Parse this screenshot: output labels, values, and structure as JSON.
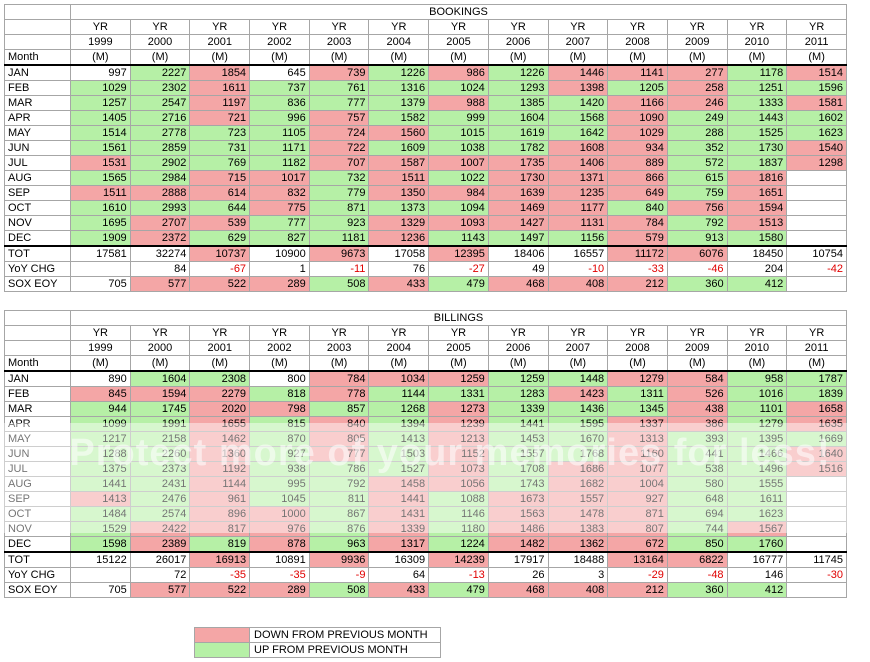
{
  "years": [
    "1999",
    "2000",
    "2001",
    "2002",
    "2003",
    "2004",
    "2005",
    "2006",
    "2007",
    "2008",
    "2009",
    "2010",
    "2011"
  ],
  "yr_label": "YR",
  "unit_label": "(M)",
  "month_col_label": "Month",
  "bookings": {
    "title": "BOOKINGS",
    "rows": [
      {
        "m": "JAN",
        "v": [
          "997",
          "2227",
          "1854",
          "645",
          "739",
          "1226",
          "986",
          "1226",
          "1446",
          "1141",
          "277",
          "1178",
          "1514"
        ],
        "c": [
          "",
          "g",
          "r",
          "",
          "r",
          "g",
          "r",
          "g",
          "r",
          "r",
          "r",
          "g",
          "r"
        ]
      },
      {
        "m": "FEB",
        "v": [
          "1029",
          "2302",
          "1611",
          "737",
          "761",
          "1316",
          "1024",
          "1293",
          "1398",
          "1205",
          "258",
          "1251",
          "1596"
        ],
        "c": [
          "g",
          "g",
          "r",
          "g",
          "g",
          "g",
          "g",
          "g",
          "r",
          "g",
          "r",
          "g",
          "g"
        ]
      },
      {
        "m": "MAR",
        "v": [
          "1257",
          "2547",
          "1197",
          "836",
          "777",
          "1379",
          "988",
          "1385",
          "1420",
          "1166",
          "246",
          "1333",
          "1581"
        ],
        "c": [
          "g",
          "g",
          "r",
          "g",
          "g",
          "g",
          "r",
          "g",
          "g",
          "r",
          "r",
          "g",
          "r"
        ]
      },
      {
        "m": "APR",
        "v": [
          "1405",
          "2716",
          "721",
          "996",
          "757",
          "1582",
          "999",
          "1604",
          "1568",
          "1090",
          "249",
          "1443",
          "1602"
        ],
        "c": [
          "g",
          "g",
          "r",
          "g",
          "r",
          "g",
          "g",
          "g",
          "g",
          "r",
          "g",
          "g",
          "g"
        ]
      },
      {
        "m": "MAY",
        "v": [
          "1514",
          "2778",
          "723",
          "1105",
          "724",
          "1560",
          "1015",
          "1619",
          "1642",
          "1029",
          "288",
          "1525",
          "1623"
        ],
        "c": [
          "g",
          "g",
          "g",
          "g",
          "r",
          "r",
          "g",
          "g",
          "g",
          "r",
          "g",
          "g",
          "g"
        ]
      },
      {
        "m": "JUN",
        "v": [
          "1561",
          "2859",
          "731",
          "1171",
          "722",
          "1609",
          "1038",
          "1782",
          "1608",
          "934",
          "352",
          "1730",
          "1540"
        ],
        "c": [
          "g",
          "g",
          "g",
          "g",
          "r",
          "g",
          "g",
          "g",
          "r",
          "r",
          "g",
          "g",
          "r"
        ]
      },
      {
        "m": "JUL",
        "v": [
          "1531",
          "2902",
          "769",
          "1182",
          "707",
          "1587",
          "1007",
          "1735",
          "1406",
          "889",
          "572",
          "1837",
          "1298"
        ],
        "c": [
          "r",
          "g",
          "g",
          "g",
          "r",
          "r",
          "r",
          "r",
          "r",
          "r",
          "g",
          "g",
          "r"
        ]
      },
      {
        "m": "AUG",
        "v": [
          "1565",
          "2984",
          "715",
          "1017",
          "732",
          "1511",
          "1022",
          "1730",
          "1371",
          "866",
          "615",
          "1816",
          ""
        ],
        "c": [
          "g",
          "g",
          "r",
          "r",
          "g",
          "r",
          "g",
          "r",
          "r",
          "r",
          "g",
          "r",
          ""
        ]
      },
      {
        "m": "SEP",
        "v": [
          "1511",
          "2888",
          "614",
          "832",
          "779",
          "1350",
          "984",
          "1639",
          "1235",
          "649",
          "759",
          "1651",
          ""
        ],
        "c": [
          "r",
          "r",
          "r",
          "r",
          "g",
          "r",
          "r",
          "r",
          "r",
          "r",
          "g",
          "r",
          ""
        ]
      },
      {
        "m": "OCT",
        "v": [
          "1610",
          "2993",
          "644",
          "775",
          "871",
          "1373",
          "1094",
          "1469",
          "1177",
          "840",
          "756",
          "1594",
          ""
        ],
        "c": [
          "g",
          "g",
          "g",
          "r",
          "g",
          "g",
          "g",
          "r",
          "r",
          "g",
          "r",
          "r",
          ""
        ]
      },
      {
        "m": "NOV",
        "v": [
          "1695",
          "2707",
          "539",
          "777",
          "923",
          "1329",
          "1093",
          "1427",
          "1131",
          "784",
          "792",
          "1513",
          ""
        ],
        "c": [
          "g",
          "r",
          "r",
          "g",
          "g",
          "r",
          "r",
          "r",
          "r",
          "r",
          "g",
          "r",
          ""
        ]
      },
      {
        "m": "DEC",
        "v": [
          "1909",
          "2372",
          "629",
          "827",
          "1181",
          "1236",
          "1143",
          "1497",
          "1156",
          "579",
          "913",
          "1580",
          ""
        ],
        "c": [
          "g",
          "r",
          "g",
          "g",
          "g",
          "r",
          "g",
          "g",
          "g",
          "r",
          "g",
          "g",
          ""
        ]
      }
    ],
    "tot": {
      "m": "TOT",
      "v": [
        "17581",
        "32274",
        "10737",
        "10900",
        "9673",
        "17058",
        "12395",
        "18406",
        "16557",
        "11172",
        "6076",
        "18450",
        "10754"
      ],
      "c": [
        "",
        "",
        "r",
        "",
        "r",
        "",
        "r",
        "",
        "",
        "r",
        "r",
        "",
        ""
      ]
    },
    "yoy": {
      "m": "YoY CHG",
      "v": [
        "",
        "84",
        "-67",
        "1",
        "-11",
        "76",
        "-27",
        "49",
        "-10",
        "-33",
        "-46",
        "204",
        "-42"
      ]
    },
    "sox": {
      "m": "SOX EOY",
      "v": [
        "705",
        "577",
        "522",
        "289",
        "508",
        "433",
        "479",
        "468",
        "408",
        "212",
        "360",
        "412",
        ""
      ],
      "c": [
        "",
        "r",
        "r",
        "r",
        "g",
        "r",
        "g",
        "r",
        "r",
        "r",
        "g",
        "g",
        ""
      ]
    }
  },
  "billings": {
    "title": "BILLINGS",
    "rows": [
      {
        "m": "JAN",
        "v": [
          "890",
          "1604",
          "2308",
          "800",
          "784",
          "1034",
          "1259",
          "1259",
          "1448",
          "1279",
          "584",
          "958",
          "1787"
        ],
        "c": [
          "",
          "g",
          "g",
          "",
          "r",
          "r",
          "r",
          "g",
          "g",
          "r",
          "r",
          "g",
          "g"
        ]
      },
      {
        "m": "FEB",
        "v": [
          "845",
          "1594",
          "2279",
          "818",
          "778",
          "1144",
          "1331",
          "1283",
          "1423",
          "1311",
          "526",
          "1016",
          "1839"
        ],
        "c": [
          "r",
          "r",
          "r",
          "g",
          "r",
          "g",
          "g",
          "g",
          "r",
          "g",
          "r",
          "g",
          "g"
        ]
      },
      {
        "m": "MAR",
        "v": [
          "944",
          "1745",
          "2020",
          "798",
          "857",
          "1268",
          "1273",
          "1339",
          "1436",
          "1345",
          "438",
          "1101",
          "1658"
        ],
        "c": [
          "g",
          "g",
          "r",
          "r",
          "g",
          "g",
          "r",
          "g",
          "g",
          "g",
          "r",
          "g",
          "r"
        ]
      },
      {
        "m": "APR",
        "v": [
          "1099",
          "1991",
          "1655",
          "815",
          "840",
          "1394",
          "1239",
          "1441",
          "1595",
          "1337",
          "386",
          "1279",
          "1635"
        ],
        "c": [
          "g",
          "g",
          "r",
          "g",
          "r",
          "g",
          "r",
          "g",
          "g",
          "r",
          "r",
          "g",
          "r"
        ]
      },
      {
        "m": "MAY",
        "v": [
          "1217",
          "2158",
          "1462",
          "870",
          "805",
          "1413",
          "1213",
          "1453",
          "1670",
          "1313",
          "393",
          "1395",
          "1669"
        ],
        "c": [
          "g",
          "g",
          "r",
          "g",
          "r",
          "g",
          "r",
          "g",
          "g",
          "r",
          "g",
          "g",
          "g"
        ]
      },
      {
        "m": "JUN",
        "v": [
          "1288",
          "2260",
          "1360",
          "927",
          "777",
          "1503",
          "1152",
          "1557",
          "1768",
          "1160",
          "441",
          "1466",
          "1640"
        ],
        "c": [
          "g",
          "g",
          "r",
          "g",
          "r",
          "g",
          "r",
          "g",
          "g",
          "r",
          "g",
          "g",
          "r"
        ]
      },
      {
        "m": "JUL",
        "v": [
          "1375",
          "2373",
          "1192",
          "938",
          "786",
          "1527",
          "1073",
          "1708",
          "1686",
          "1077",
          "538",
          "1496",
          "1516"
        ],
        "c": [
          "g",
          "g",
          "r",
          "g",
          "g",
          "g",
          "r",
          "g",
          "r",
          "r",
          "g",
          "g",
          "r"
        ]
      },
      {
        "m": "AUG",
        "v": [
          "1441",
          "2431",
          "1144",
          "995",
          "792",
          "1458",
          "1056",
          "1743",
          "1682",
          "1004",
          "580",
          "1555",
          ""
        ],
        "c": [
          "g",
          "g",
          "r",
          "g",
          "g",
          "r",
          "r",
          "g",
          "r",
          "r",
          "g",
          "g",
          ""
        ]
      },
      {
        "m": "SEP",
        "v": [
          "1413",
          "2476",
          "961",
          "1045",
          "811",
          "1441",
          "1088",
          "1673",
          "1557",
          "927",
          "648",
          "1611",
          ""
        ],
        "c": [
          "r",
          "g",
          "r",
          "g",
          "g",
          "r",
          "g",
          "r",
          "r",
          "r",
          "g",
          "g",
          ""
        ]
      },
      {
        "m": "OCT",
        "v": [
          "1484",
          "2574",
          "896",
          "1000",
          "867",
          "1431",
          "1146",
          "1563",
          "1478",
          "871",
          "694",
          "1623",
          ""
        ],
        "c": [
          "g",
          "g",
          "r",
          "r",
          "g",
          "r",
          "g",
          "r",
          "r",
          "r",
          "g",
          "g",
          ""
        ]
      },
      {
        "m": "NOV",
        "v": [
          "1529",
          "2422",
          "817",
          "976",
          "876",
          "1339",
          "1180",
          "1486",
          "1383",
          "807",
          "744",
          "1567",
          ""
        ],
        "c": [
          "g",
          "r",
          "r",
          "r",
          "g",
          "r",
          "g",
          "r",
          "r",
          "r",
          "g",
          "r",
          ""
        ]
      },
      {
        "m": "DEC",
        "v": [
          "1598",
          "2389",
          "819",
          "878",
          "963",
          "1317",
          "1224",
          "1482",
          "1362",
          "672",
          "850",
          "1760",
          ""
        ],
        "c": [
          "g",
          "r",
          "g",
          "r",
          "g",
          "r",
          "g",
          "r",
          "r",
          "r",
          "g",
          "g",
          ""
        ]
      }
    ],
    "tot": {
      "m": "TOT",
      "v": [
        "15122",
        "26017",
        "16913",
        "10891",
        "9936",
        "16309",
        "14239",
        "17917",
        "18488",
        "13164",
        "6822",
        "16777",
        "11745"
      ],
      "c": [
        "",
        "",
        "r",
        "",
        "r",
        "",
        "r",
        "",
        "",
        "r",
        "r",
        "",
        ""
      ]
    },
    "yoy": {
      "m": "YoY CHG",
      "v": [
        "",
        "72",
        "-35",
        "-35",
        "-9",
        "64",
        "-13",
        "26",
        "3",
        "-29",
        "-48",
        "146",
        "-30"
      ]
    },
    "sox": {
      "m": "SOX EOY",
      "v": [
        "705",
        "577",
        "522",
        "289",
        "508",
        "433",
        "479",
        "468",
        "408",
        "212",
        "360",
        "412",
        ""
      ],
      "c": [
        "",
        "r",
        "r",
        "r",
        "g",
        "r",
        "g",
        "r",
        "r",
        "r",
        "g",
        "g",
        ""
      ]
    }
  },
  "legend": {
    "down": "DOWN FROM PREVIOUS MONTH",
    "up": "UP FROM PREVIOUS MONTH",
    "down_color": "#f4a6a6",
    "up_color": "#b6f0a6"
  },
  "watermark": "Protect more of your memories for less!"
}
